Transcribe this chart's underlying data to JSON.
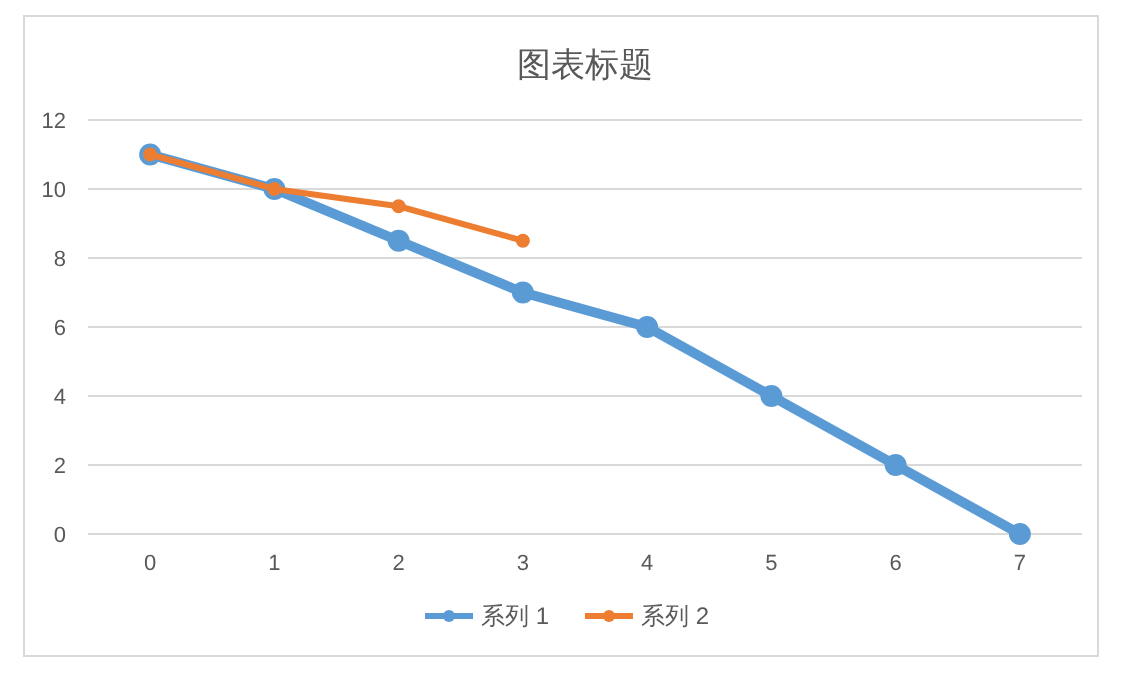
{
  "chart_data": {
    "type": "line",
    "title": "图表标题",
    "categories": [
      "0",
      "1",
      "2",
      "3",
      "4",
      "5",
      "6",
      "7"
    ],
    "series": [
      {
        "name": "系列 1",
        "color": "#5b9bd5",
        "values": [
          11,
          10,
          8.5,
          7,
          6,
          4,
          2,
          0
        ]
      },
      {
        "name": "系列 2",
        "color": "#ed7d31",
        "values": [
          11,
          10,
          9.5,
          8.5,
          null,
          null,
          null,
          null
        ]
      }
    ],
    "ylim": [
      0,
      12
    ],
    "yticks": [
      0,
      2,
      4,
      6,
      8,
      10,
      12
    ],
    "grid": "y",
    "legend": "bottom",
    "marker": "circle",
    "line_style": "solid"
  }
}
